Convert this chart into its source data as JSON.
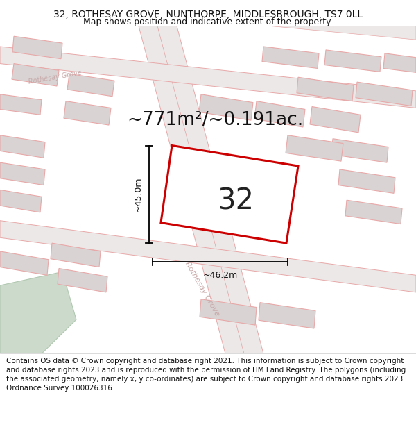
{
  "title_line1": "32, ROTHESAY GROVE, NUNTHORPE, MIDDLESBROUGH, TS7 0LL",
  "title_line2": "Map shows position and indicative extent of the property.",
  "area_text": "~771m²/~0.191ac.",
  "plot_number": "32",
  "dim_vertical": "~45.0m",
  "dim_horizontal": "~46.2m",
  "road_label_diag": "Rothesay Grove",
  "road_label_upper": "Rothesay Grove",
  "map_bg_color": "#f2eded",
  "building_fill": "#d9d3d3",
  "building_edge": "#e8a8a8",
  "road_fill": "#ede8e8",
  "road_edge": "#e8a8a8",
  "highlight_fill": "#ffffff",
  "highlight_edge": "#cc0000",
  "green_fill": "#ccdacc",
  "green_edge": "#b0c8b0",
  "title_fontsize": 10,
  "subtitle_fontsize": 9,
  "area_fontsize": 19,
  "plot_num_fontsize": 30,
  "dim_fontsize": 9,
  "footer_fontsize": 7.5,
  "road_label_fontsize": 8,
  "footer_text": "Contains OS data © Crown copyright and database right 2021. This information is subject to Crown copyright and database rights 2023 and is reproduced with the permission of HM Land Registry. The polygons (including the associated geometry, namely x, y co-ordinates) are subject to Crown copyright and database rights 2023 Ordnance Survey 100026316."
}
